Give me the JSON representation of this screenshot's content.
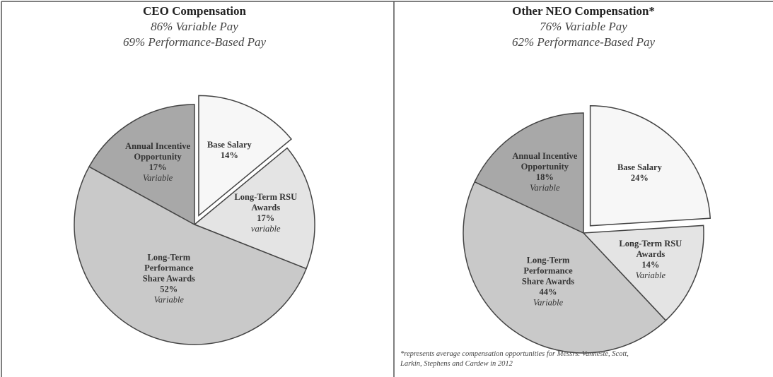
{
  "chart_data": [
    {
      "type": "pie",
      "title": "CEO Compensation",
      "subtitle": [
        "86% Variable Pay",
        "69% Performance-Based Pay"
      ],
      "categories": [
        "Base Salary",
        "Long-Term RSU Awards",
        "Long-Term Performance Share Awards",
        "Annual Incentive Opportunity"
      ],
      "values": [
        14,
        17,
        52,
        17
      ],
      "value_labels": [
        "14%",
        "17%",
        "52%",
        "17%"
      ],
      "notes": [
        null,
        "variable",
        "Variable",
        "Variable"
      ],
      "colors": [
        "#f7f7f7",
        "#e4e4e4",
        "#c9c9c9",
        "#a8a8a8"
      ],
      "exploded": [
        true,
        false,
        false,
        false
      ]
    },
    {
      "type": "pie",
      "title": "Other NEO Compensation*",
      "subtitle": [
        "76% Variable Pay",
        "62% Performance-Based Pay"
      ],
      "categories": [
        "Base Salary",
        "Long-Term RSU Awards",
        "Long-Term Performance Share Awards",
        "Annual Incentive Opportunity"
      ],
      "values": [
        24,
        14,
        44,
        18
      ],
      "value_labels": [
        "24%",
        "14%",
        "44%",
        "18%"
      ],
      "notes": [
        null,
        "Variable",
        "Variable",
        "Variable"
      ],
      "colors": [
        "#f7f7f7",
        "#e4e4e4",
        "#c9c9c9",
        "#a8a8a8"
      ],
      "exploded": [
        true,
        false,
        false,
        false
      ],
      "footnote": "*represents average compensation opportunities for Messrs. Vanneste, Scott, Larkin, Stephens and Cardew in 2012"
    }
  ]
}
